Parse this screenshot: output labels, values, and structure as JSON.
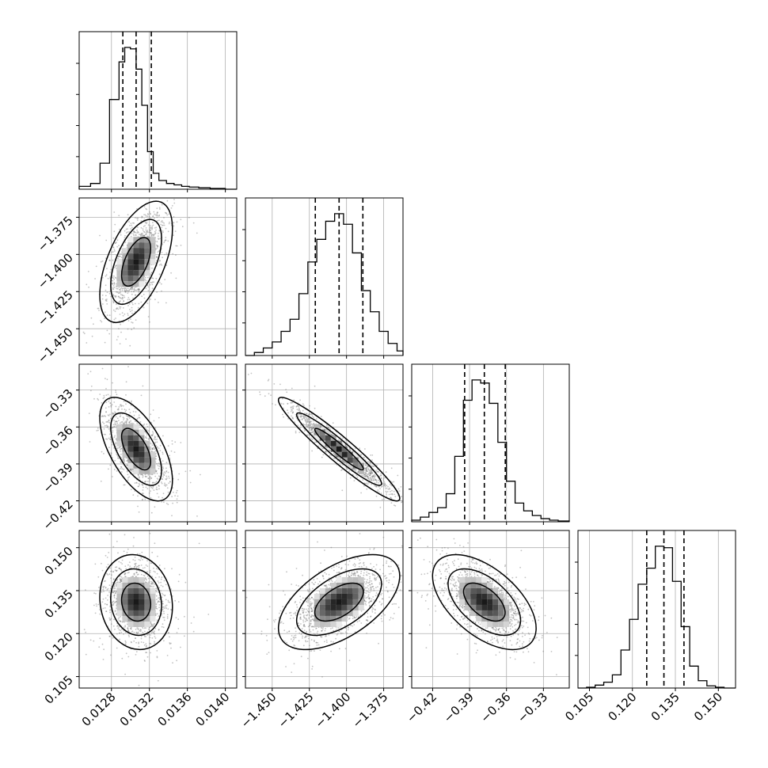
{
  "chart_data": {
    "type": "corner",
    "grid": true,
    "axes_ranges": [
      {
        "min": 0.01246,
        "max": 0.01412
      },
      {
        "min": -1.468,
        "max": -1.362
      },
      {
        "min": -0.437,
        "max": -0.309
      },
      {
        "min": 0.101,
        "max": 0.156
      }
    ],
    "tick_values": [
      [
        0.0128,
        0.0132,
        0.0136,
        0.014
      ],
      [
        -1.45,
        -1.425,
        -1.4,
        -1.375
      ],
      [
        -0.42,
        -0.39,
        -0.36,
        -0.33
      ],
      [
        0.105,
        0.12,
        0.135,
        0.15
      ]
    ],
    "tick_labels": [
      [
        "0.0128",
        "0.0132",
        "0.0136",
        "0.0140"
      ],
      [
        "−1.450",
        "−1.425",
        "−1.400",
        "−1.375"
      ],
      [
        "−0.42",
        "−0.39",
        "−0.36",
        "−0.33"
      ],
      [
        "0.105",
        "0.120",
        "0.135",
        "0.150"
      ]
    ],
    "quantiles": [
      [
        0.01292,
        0.01306,
        0.01322
      ],
      [
        -1.421,
        -1.405,
        -1.389
      ],
      [
        -0.394,
        -0.378,
        -0.361
      ],
      [
        0.125,
        0.131,
        0.138
      ]
    ],
    "histograms": [
      {
        "edges": [
          0.01246,
          0.01258,
          0.01268,
          0.01278,
          0.01288,
          0.01294,
          0.013,
          0.01306,
          0.01312,
          0.01318,
          0.01324,
          0.0133,
          0.01338,
          0.01346,
          0.01354,
          0.01362,
          0.01372,
          0.01384,
          0.014,
          0.01412
        ],
        "counts": [
          0.02,
          0.04,
          0.18,
          0.62,
          0.88,
          0.98,
          0.97,
          0.83,
          0.58,
          0.26,
          0.11,
          0.06,
          0.04,
          0.03,
          0.02,
          0.015,
          0.01,
          0.005,
          0.0
        ]
      },
      {
        "edges": [
          -1.468,
          -1.462,
          -1.456,
          -1.45,
          -1.444,
          -1.438,
          -1.432,
          -1.426,
          -1.42,
          -1.414,
          -1.408,
          -1.402,
          -1.396,
          -1.39,
          -1.384,
          -1.378,
          -1.372,
          -1.366,
          -1.362
        ],
        "counts": [
          0.0,
          0.02,
          0.05,
          0.09,
          0.16,
          0.24,
          0.41,
          0.62,
          0.77,
          0.89,
          0.94,
          0.87,
          0.68,
          0.43,
          0.29,
          0.16,
          0.08,
          0.03
        ]
      },
      {
        "edges": [
          -0.437,
          -0.43,
          -0.423,
          -0.416,
          -0.409,
          -0.402,
          -0.395,
          -0.388,
          -0.381,
          -0.374,
          -0.367,
          -0.36,
          -0.353,
          -0.346,
          -0.339,
          -0.332,
          -0.325,
          -0.318,
          -0.309
        ],
        "counts": [
          0.01,
          0.03,
          0.06,
          0.09,
          0.18,
          0.42,
          0.78,
          0.91,
          0.89,
          0.76,
          0.51,
          0.26,
          0.12,
          0.07,
          0.04,
          0.02,
          0.01,
          0.005
        ]
      },
      {
        "edges": [
          0.101,
          0.104,
          0.107,
          0.11,
          0.113,
          0.116,
          0.119,
          0.122,
          0.125,
          0.128,
          0.131,
          0.134,
          0.137,
          0.14,
          0.143,
          0.146,
          0.149,
          0.152,
          0.156
        ],
        "counts": [
          0.0,
          0.005,
          0.02,
          0.04,
          0.09,
          0.26,
          0.47,
          0.71,
          0.82,
          0.97,
          0.96,
          0.73,
          0.42,
          0.15,
          0.05,
          0.015,
          0.005,
          0.0
        ]
      }
    ],
    "contour_sigmas": [
      1,
      2,
      3
    ],
    "scatter_points_per_panel": 1400
  }
}
